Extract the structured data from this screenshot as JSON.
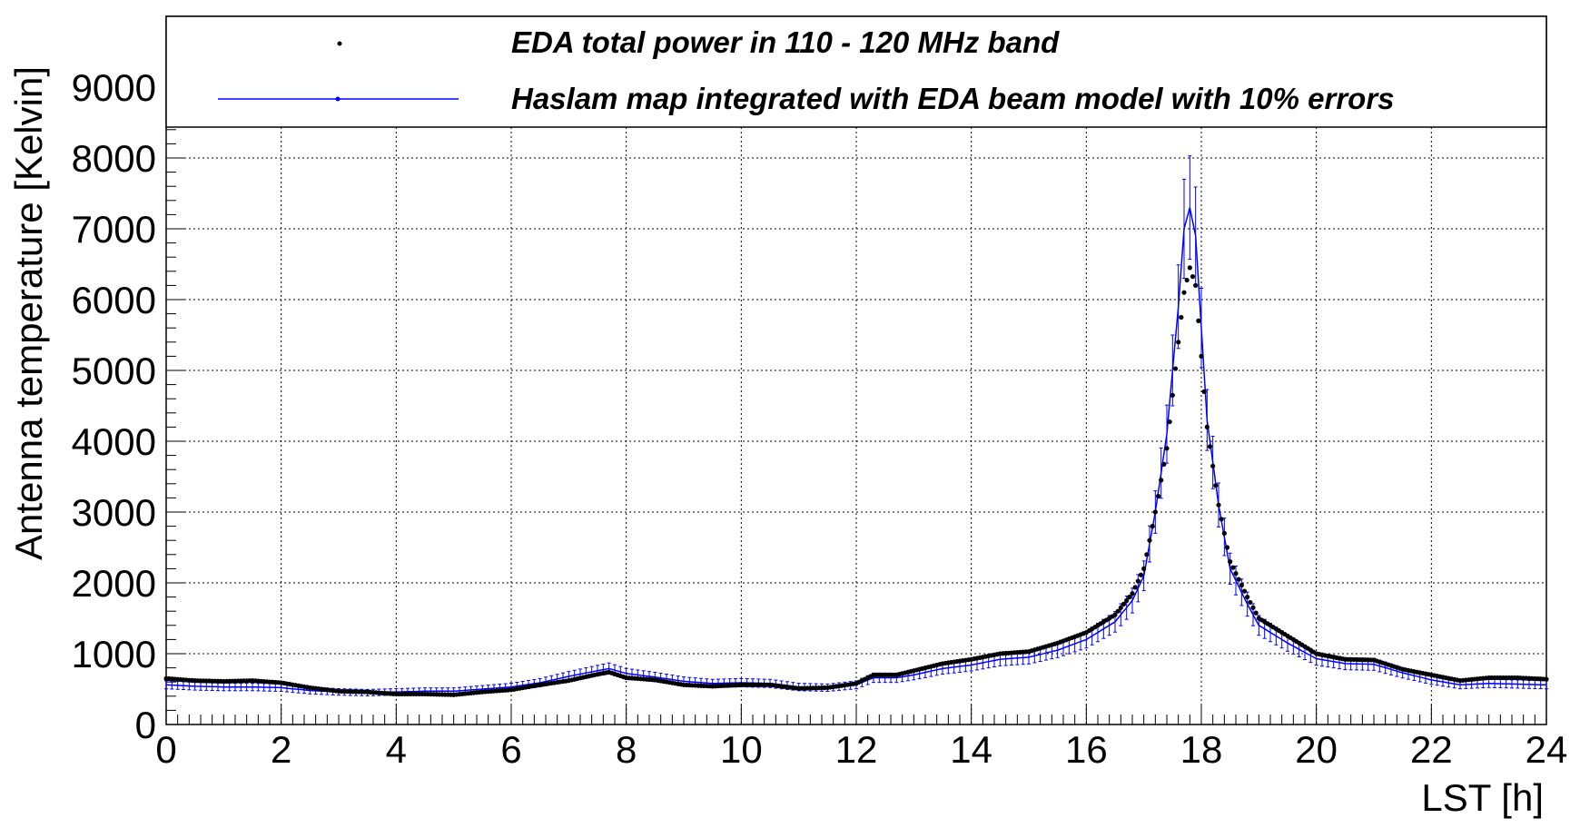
{
  "chart_data": {
    "type": "line",
    "xlabel": "LST [h]",
    "ylabel": "Antenna temperature [Kelvin]",
    "xlim": [
      0,
      24
    ],
    "ylim": [
      0,
      10000
    ],
    "x_ticks": [
      "0",
      "2",
      "4",
      "6",
      "8",
      "10",
      "12",
      "14",
      "16",
      "18",
      "20",
      "22",
      "24"
    ],
    "y_ticks": [
      "0",
      "1000",
      "2000",
      "3000",
      "4000",
      "5000",
      "6000",
      "7000",
      "8000",
      "9000"
    ],
    "grid": true,
    "legend_position": "top",
    "legend": [
      {
        "label": "EDA total power in 110 - 120 MHz band",
        "color": "#000000",
        "marker": "dot"
      },
      {
        "label": "Haslam map integrated with EDA beam model with 10% errors",
        "color": "#0000ff",
        "marker": "line-with-error-bars"
      }
    ],
    "series": [
      {
        "name": "EDA total power in 110 - 120 MHz band",
        "color": "#000000",
        "style": "markers",
        "x": [
          0,
          0.5,
          1,
          1.5,
          2,
          2.5,
          3,
          3.5,
          4,
          4.5,
          5,
          5.5,
          6,
          6.5,
          7,
          7.5,
          7.7,
          8,
          8.5,
          9,
          9.5,
          10,
          10.5,
          11,
          11.5,
          12,
          12.3,
          12.7,
          13,
          13.5,
          14,
          14.5,
          15,
          15.5,
          16,
          16.5,
          16.8,
          17,
          17.2,
          17.4,
          17.6,
          17.7,
          17.8,
          17.9,
          18,
          18.1,
          18.3,
          18.5,
          18.8,
          19,
          19.5,
          20,
          20.5,
          21,
          21.5,
          22,
          22.5,
          23,
          23.5,
          24
        ],
        "y": [
          650,
          620,
          610,
          620,
          590,
          520,
          470,
          460,
          430,
          430,
          420,
          460,
          490,
          560,
          620,
          710,
          740,
          660,
          630,
          560,
          540,
          560,
          560,
          510,
          520,
          580,
          700,
          700,
          760,
          860,
          920,
          1000,
          1030,
          1150,
          1300,
          1550,
          1850,
          2200,
          3000,
          3900,
          5400,
          6100,
          6450,
          6200,
          5200,
          4200,
          3100,
          2300,
          1800,
          1500,
          1250,
          1000,
          920,
          910,
          780,
          700,
          620,
          660,
          660,
          640
        ]
      },
      {
        "name": "Haslam map integrated with EDA beam model with 10% errors",
        "color": "#0000ff",
        "style": "line-with-error-bars",
        "relative_error": 0.1,
        "x": [
          0,
          0.5,
          1,
          1.5,
          2,
          2.5,
          3,
          3.5,
          4,
          4.5,
          5,
          5.5,
          6,
          6.5,
          7,
          7.5,
          7.7,
          8,
          8.5,
          9,
          9.5,
          10,
          10.5,
          11,
          11.5,
          12,
          12.3,
          12.7,
          13,
          13.5,
          14,
          14.5,
          15,
          15.5,
          16,
          16.5,
          16.8,
          17,
          17.2,
          17.4,
          17.6,
          17.7,
          17.8,
          17.9,
          18,
          18.1,
          18.3,
          18.5,
          18.8,
          19,
          19.5,
          20,
          20.5,
          21,
          21.5,
          22,
          22.5,
          23,
          23.5,
          24
        ],
        "y": [
          560,
          540,
          530,
          530,
          520,
          480,
          460,
          450,
          460,
          470,
          470,
          500,
          530,
          590,
          680,
          760,
          790,
          720,
          670,
          610,
          580,
          590,
          580,
          530,
          520,
          560,
          660,
          660,
          700,
          790,
          840,
          920,
          950,
          1050,
          1200,
          1450,
          1750,
          2100,
          3000,
          4100,
          5900,
          7000,
          7300,
          6900,
          5600,
          4300,
          3100,
          2200,
          1700,
          1400,
          1150,
          930,
          860,
          850,
          730,
          630,
          560,
          580,
          570,
          560
        ]
      }
    ]
  }
}
